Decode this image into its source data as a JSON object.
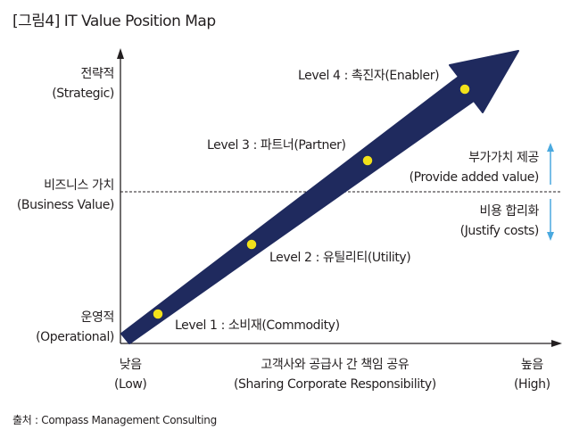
{
  "title": "[그림4] IT Value Position Map",
  "y_labels": {
    "strategic": [
      "전략적",
      "(Strategic)"
    ],
    "business_value": [
      "비즈니스 가치",
      "(Business Value)"
    ],
    "operational": [
      "운영적",
      "(Operational)"
    ]
  },
  "x_labels": {
    "low": [
      "낮음",
      "(Low)"
    ],
    "center": [
      "고객사와 공급사 간 책임 공유",
      "(Sharing Corporate Responsibility)"
    ],
    "high": [
      "높음",
      "(High)"
    ]
  },
  "levels": [
    {
      "label": "Level 1 : 소비재(Commodity)"
    },
    {
      "label": "Level 2 : 유틸리티(Utility)"
    },
    {
      "label": "Level 3 : 파트너(Partner)"
    },
    {
      "label": "Level 4 : 촉진자(Enabler)"
    }
  ],
  "side_labels": {
    "up": [
      "부가가치 제공",
      "(Provide added value)"
    ],
    "down": [
      "비용 합리화",
      "(Justify costs)"
    ]
  },
  "source": "출처 : Compass Management Consulting",
  "colors": {
    "arrow": "#1f2a5e",
    "dot": "#f2e11a",
    "side_arrow": "#4aa9df",
    "text": "#231f20"
  }
}
